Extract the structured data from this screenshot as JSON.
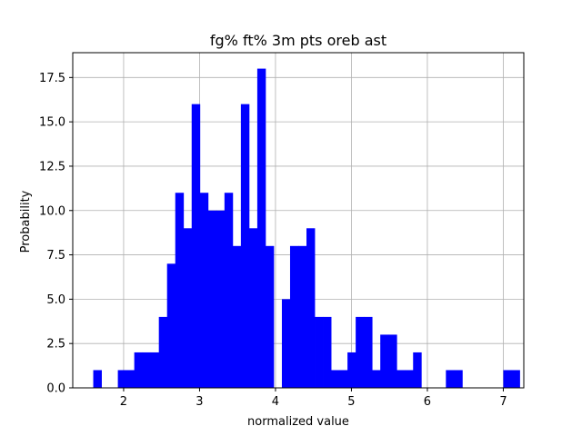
{
  "chart_data": {
    "type": "bar",
    "title": "fg% ft% 3m pts oreb ast",
    "xlabel": "normalized value",
    "ylabel": "Probability",
    "xlim": [
      1.33,
      7.27
    ],
    "ylim": [
      0,
      18.9
    ],
    "xticks": [
      2,
      3,
      4,
      5,
      6,
      7
    ],
    "xtick_labels": [
      "2",
      "3",
      "4",
      "5",
      "6",
      "7"
    ],
    "yticks": [
      0.0,
      2.5,
      5.0,
      7.5,
      10.0,
      12.5,
      15.0,
      17.5
    ],
    "ytick_labels": [
      "0.0",
      "2.5",
      "5.0",
      "7.5",
      "10.0",
      "12.5",
      "15.0",
      "17.5"
    ],
    "grid": true,
    "bar_color": "#0000ff",
    "bin_start": 1.6,
    "bin_width": 0.108,
    "values": [
      1,
      0,
      0,
      1,
      1,
      2,
      2,
      2,
      4,
      7,
      11,
      9,
      16,
      11,
      10,
      10,
      11,
      8,
      16,
      9,
      18,
      8,
      0,
      5,
      8,
      8,
      9,
      4,
      4,
      1,
      1,
      2,
      4,
      4,
      1,
      3,
      3,
      1,
      1,
      2,
      0,
      0,
      0,
      1,
      1,
      0,
      0,
      0,
      0,
      0,
      1,
      1
    ]
  }
}
